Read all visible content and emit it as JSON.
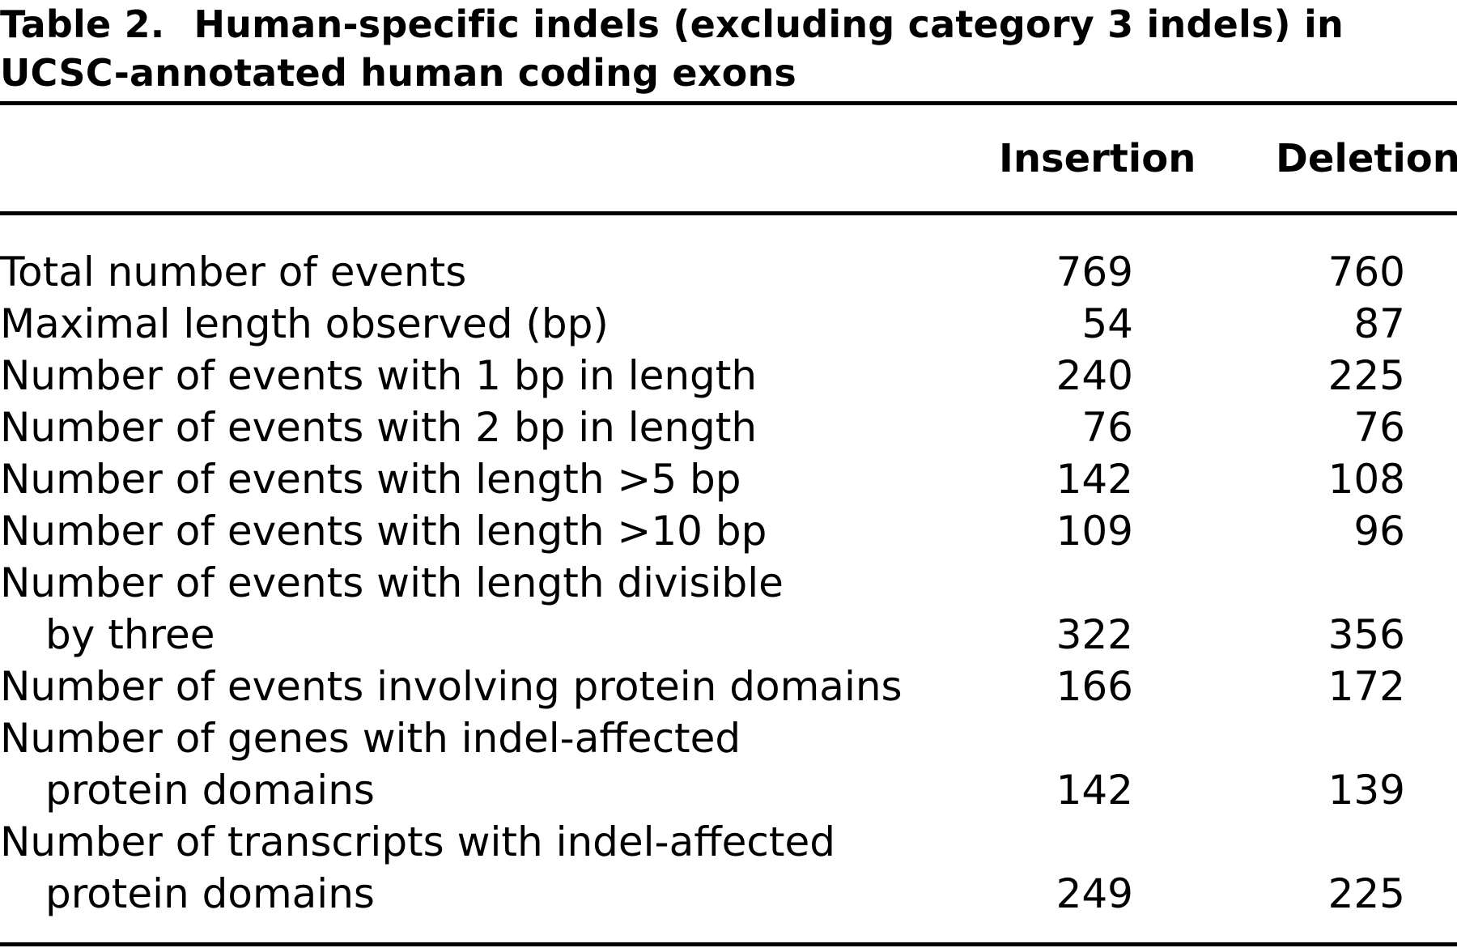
{
  "caption": {
    "label": "Table 2.",
    "title_line1": "Human-specific indels (excluding category 3 indels) in",
    "title_line2": "UCSC-annotated human coding exons"
  },
  "columns": {
    "insertion": "Insertion",
    "deletion": "Deletion"
  },
  "rows": [
    {
      "label": "Total number of events",
      "insertion": "769",
      "deletion": "760"
    },
    {
      "label": "Maximal length observed (bp)",
      "insertion": "54",
      "deletion": "87"
    },
    {
      "label": "Number of events with 1 bp in length",
      "insertion": "240",
      "deletion": "225"
    },
    {
      "label": "Number of events with 2 bp in length",
      "insertion": "76",
      "deletion": "76"
    },
    {
      "label": "Number of events with length >5 bp",
      "insertion": "142",
      "deletion": "108"
    },
    {
      "label": "Number of events with length >10 bp",
      "insertion": "109",
      "deletion": "96"
    },
    {
      "label": "Number of events with length divisible",
      "label_cont": "by three",
      "insertion": "322",
      "deletion": "356"
    },
    {
      "label": "Number of events involving protein domains",
      "insertion": "166",
      "deletion": "172"
    },
    {
      "label": "Number of genes with indel-affected",
      "label_cont": "protein domains",
      "insertion": "142",
      "deletion": "139"
    },
    {
      "label": "Number of transcripts with indel-affected",
      "label_cont": "protein domains",
      "insertion": "249",
      "deletion": "225"
    }
  ]
}
